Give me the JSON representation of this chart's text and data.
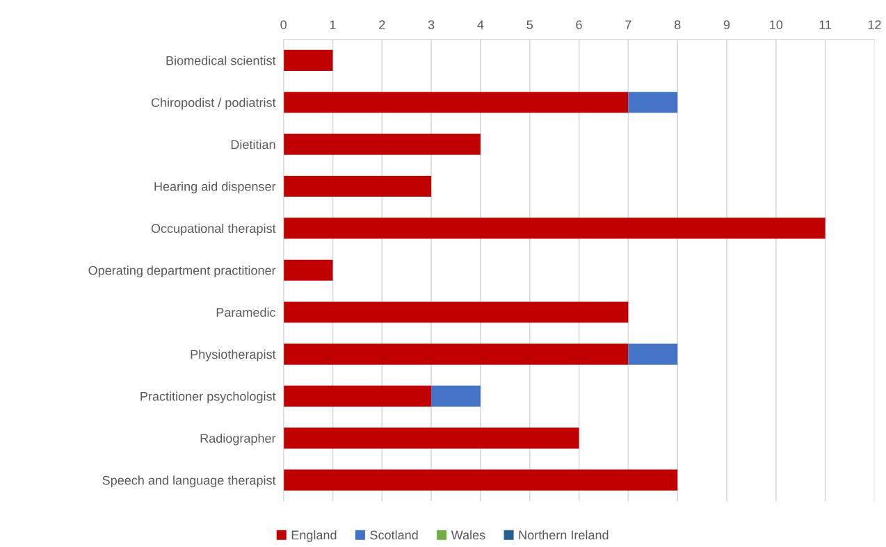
{
  "chart_data": {
    "type": "bar",
    "orientation": "horizontal",
    "stacked": true,
    "categories": [
      "Biomedical scientist",
      "Chiropodist / podiatrist",
      "Dietitian",
      "Hearing aid dispenser",
      "Occupational therapist",
      "Operating department practitioner",
      "Paramedic",
      "Physiotherapist",
      "Practitioner psychologist",
      "Radiographer",
      "Speech and language therapist"
    ],
    "series": [
      {
        "name": "England",
        "color": "#c00000",
        "values": [
          1,
          7,
          4,
          3,
          11,
          1,
          7,
          7,
          3,
          6,
          8
        ]
      },
      {
        "name": "Scotland",
        "color": "#4472c4",
        "values": [
          0,
          1,
          0,
          0,
          0,
          0,
          0,
          1,
          1,
          0,
          0
        ]
      },
      {
        "name": "Wales",
        "color": "#70ad47",
        "values": [
          0,
          0,
          0,
          0,
          0,
          0,
          0,
          0,
          0,
          0,
          0
        ]
      },
      {
        "name": "Northern Ireland",
        "color": "#255e91",
        "values": [
          0,
          0,
          0,
          0,
          0,
          0,
          0,
          0,
          0,
          0,
          0
        ]
      }
    ],
    "xlim": [
      0,
      12
    ],
    "xticks": [
      0,
      1,
      2,
      3,
      4,
      5,
      6,
      7,
      8,
      9,
      10,
      11,
      12
    ],
    "grid": "x",
    "legend": "bottom"
  }
}
